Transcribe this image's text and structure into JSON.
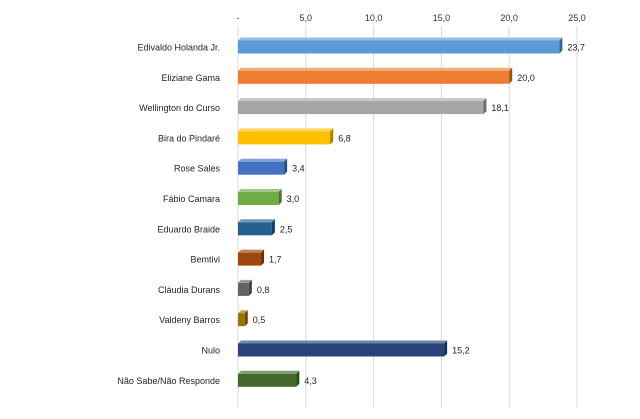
{
  "chart_data": {
    "type": "bar",
    "orientation": "horizontal",
    "style": "3d",
    "categories": [
      "Edivaldo Holanda Jr.",
      "Eliziane Gama",
      "Wellington do Curso",
      "Bira do Pindaré",
      "Rose Sales",
      "Fábio Camara",
      "Eduardo Braide",
      "Bemtivi",
      "Cláudia Durans",
      "Valdeny Barros",
      "Nulo",
      "Não Sabe/Não Responde"
    ],
    "values": [
      23.7,
      20.0,
      18.1,
      6.8,
      3.4,
      3.0,
      2.5,
      1.7,
      0.8,
      0.5,
      15.2,
      4.3
    ],
    "value_labels": [
      "23,7",
      "20,0",
      "18,1",
      "6,8",
      "3,4",
      "3,0",
      "2,5",
      "1,7",
      "0,8",
      "0,5",
      "15,2",
      "4,3"
    ],
    "colors": [
      "#5b9bd5",
      "#ed7d31",
      "#a5a5a5",
      "#ffc000",
      "#4472c4",
      "#70ad47",
      "#255e91",
      "#9e480e",
      "#636363",
      "#997300",
      "#264478",
      "#43682b"
    ],
    "xticks": [
      "-",
      "5,0",
      "10,0",
      "15,0",
      "20,0",
      "25,0"
    ],
    "xlim": [
      0,
      25
    ],
    "axis_position": "top",
    "grid": true,
    "title": "",
    "xlabel": "",
    "ylabel": ""
  }
}
